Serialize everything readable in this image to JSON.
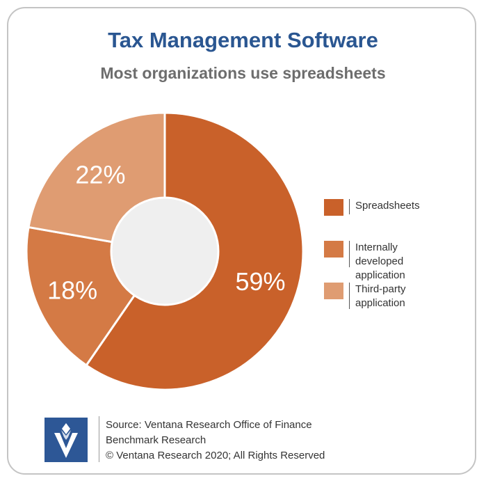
{
  "header": {
    "title": "Tax Management Software",
    "subtitle": "Most organizations use spreadsheets"
  },
  "chart_data": {
    "type": "pie",
    "title": "Tax Management Software",
    "subtitle": "Most organizations use spreadsheets",
    "categories": [
      "Spreadsheets",
      "Internally developed application",
      "Third-party application"
    ],
    "values": [
      59,
      18,
      22
    ],
    "labels": [
      "59%",
      "18%",
      "22%"
    ],
    "colors": [
      "#c9612a",
      "#d47a45",
      "#df9c72"
    ],
    "donut": true,
    "legend_position": "right"
  },
  "legend": {
    "items": [
      {
        "label": "Spreadsheets",
        "color": "#c9612a"
      },
      {
        "label": "Internally developed application",
        "color": "#d47a45"
      },
      {
        "label": "Third-party application",
        "color": "#df9c72"
      }
    ]
  },
  "footer": {
    "source_line1": "Source: Ventana Research Office of Finance",
    "source_line2": "Benchmark Research",
    "copyright": "© Ventana Research 2020; All Rights Reserved",
    "logo_icon": "ventana-logo-icon",
    "logo_color": "#2d5796"
  }
}
